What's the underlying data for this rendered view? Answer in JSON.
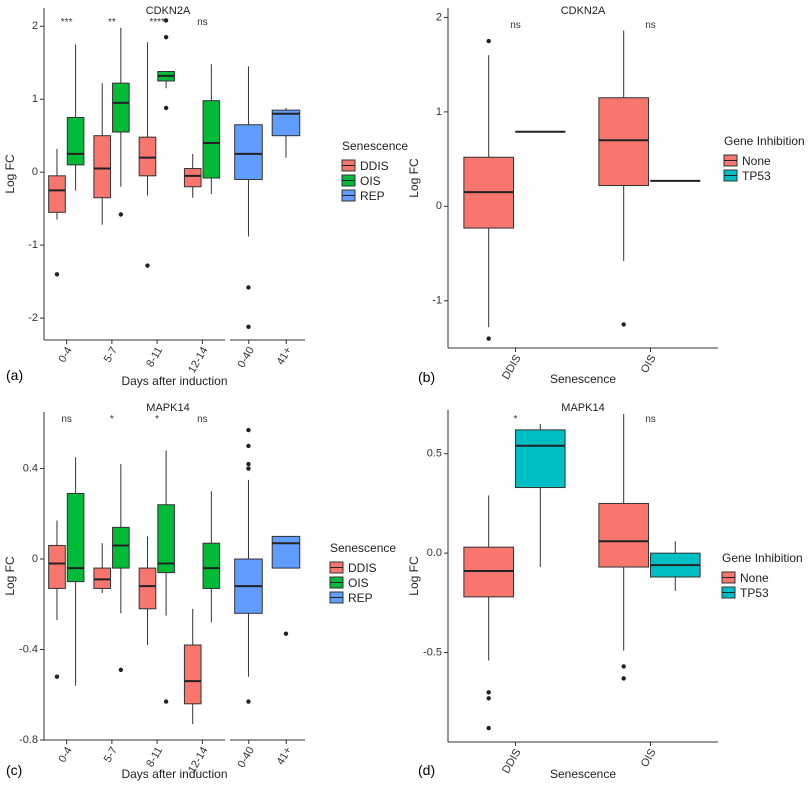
{
  "chart_data": [
    {
      "type": "boxplot",
      "panel_label": "(a)",
      "title": "CDKN2A",
      "xlabel": "Days after induction",
      "ylabel": "Log FC",
      "ylim": [
        -2.3,
        2.25
      ],
      "yticks": [
        -2,
        -1,
        0,
        1,
        2
      ],
      "facets": [
        {
          "categories": [
            "0-4",
            "5-7",
            "8-11",
            "12-14"
          ]
        },
        {
          "categories": [
            "0-40",
            "41+"
          ]
        }
      ],
      "legend": {
        "title": "Senescence",
        "entries": [
          "DDIS",
          "OIS",
          "REP"
        ],
        "colors": [
          "#F8766D",
          "#00BA38",
          "#619CFF"
        ]
      },
      "significance": [
        "***",
        "**",
        "****",
        "ns"
      ],
      "boxes": [
        {
          "facet": 0,
          "category": "0-4",
          "group": "DDIS",
          "min": -0.65,
          "q1": -0.55,
          "median": -0.25,
          "q3": -0.05,
          "max": 0.32,
          "outliers": [
            -1.4
          ]
        },
        {
          "facet": 0,
          "category": "0-4",
          "group": "OIS",
          "min": -0.25,
          "q1": 0.1,
          "median": 0.25,
          "q3": 0.75,
          "max": 1.75,
          "outliers": []
        },
        {
          "facet": 0,
          "category": "5-7",
          "group": "DDIS",
          "min": -0.72,
          "q1": -0.35,
          "median": 0.05,
          "q3": 0.5,
          "max": 1.22,
          "outliers": []
        },
        {
          "facet": 0,
          "category": "5-7",
          "group": "OIS",
          "min": -0.2,
          "q1": 0.55,
          "median": 0.95,
          "q3": 1.22,
          "max": 1.98,
          "outliers": [
            -0.58
          ]
        },
        {
          "facet": 0,
          "category": "8-11",
          "group": "DDIS",
          "min": -0.32,
          "q1": -0.05,
          "median": 0.2,
          "q3": 0.48,
          "max": 1.78,
          "outliers": [
            -1.28
          ]
        },
        {
          "facet": 0,
          "category": "8-11",
          "group": "OIS",
          "min": 1.15,
          "q1": 1.25,
          "median": 1.32,
          "q3": 1.38,
          "max": 1.38,
          "outliers": [
            0.88,
            1.85,
            2.08
          ]
        },
        {
          "facet": 0,
          "category": "12-14",
          "group": "DDIS",
          "min": -0.35,
          "q1": -0.2,
          "median": -0.05,
          "q3": 0.05,
          "max": 0.25,
          "outliers": []
        },
        {
          "facet": 0,
          "category": "12-14",
          "group": "OIS",
          "min": -0.3,
          "q1": -0.08,
          "median": 0.4,
          "q3": 0.98,
          "max": 1.48,
          "outliers": []
        },
        {
          "facet": 1,
          "category": "0-40",
          "group": "REP",
          "min": -0.88,
          "q1": -0.1,
          "median": 0.25,
          "q3": 0.65,
          "max": 1.45,
          "outliers": [
            -1.58,
            -2.12
          ]
        },
        {
          "facet": 1,
          "category": "41+",
          "group": "REP",
          "min": 0.2,
          "q1": 0.5,
          "median": 0.8,
          "q3": 0.85,
          "max": 0.88,
          "outliers": []
        }
      ]
    },
    {
      "type": "boxplot",
      "panel_label": "(b)",
      "title": "CDKN2A",
      "xlabel": "Senescence",
      "ylabel": "Log FC",
      "ylim": [
        -1.5,
        2.1
      ],
      "yticks": [
        -1,
        0,
        1,
        2
      ],
      "categories": [
        "DDIS",
        "OIS"
      ],
      "legend": {
        "title": "Gene Inhibition",
        "entries": [
          "None",
          "TP53"
        ],
        "colors": [
          "#F8766D",
          "#00BFC4"
        ]
      },
      "significance": [
        "ns",
        "ns"
      ],
      "boxes": [
        {
          "category": "DDIS",
          "group": "None",
          "min": -1.28,
          "q1": -0.23,
          "median": 0.15,
          "q3": 0.52,
          "max": 1.6,
          "outliers": [
            1.75,
            -1.4
          ]
        },
        {
          "category": "DDIS",
          "group": "TP53",
          "min": 0.79,
          "q1": 0.79,
          "median": 0.79,
          "q3": 0.79,
          "max": 0.79,
          "outliers": []
        },
        {
          "category": "OIS",
          "group": "None",
          "min": -0.58,
          "q1": 0.22,
          "median": 0.7,
          "q3": 1.15,
          "max": 1.86,
          "outliers": [
            -1.25
          ]
        },
        {
          "category": "OIS",
          "group": "TP53",
          "min": 0.27,
          "q1": 0.27,
          "median": 0.27,
          "q3": 0.27,
          "max": 0.27,
          "outliers": []
        }
      ]
    },
    {
      "type": "boxplot",
      "panel_label": "(c)",
      "title": "MAPK14",
      "xlabel": "Days after induction",
      "ylabel": "Log FC",
      "ylim": [
        -0.8,
        0.65
      ],
      "yticks": [
        -0.8,
        -0.4,
        0,
        0.4
      ],
      "yticklabels": [
        "-0.8",
        "-0.4",
        "0",
        "0.4"
      ],
      "facets": [
        {
          "categories": [
            "0-4",
            "5-7",
            "8-11",
            "12-14"
          ]
        },
        {
          "categories": [
            "0-40",
            "41+"
          ]
        }
      ],
      "legend": {
        "title": "Senescence",
        "entries": [
          "DDIS",
          "OIS",
          "REP"
        ],
        "colors": [
          "#F8766D",
          "#00BA38",
          "#619CFF"
        ]
      },
      "significance": [
        "ns",
        "*",
        "*",
        "ns"
      ],
      "boxes": [
        {
          "facet": 0,
          "category": "0-4",
          "group": "DDIS",
          "min": -0.27,
          "q1": -0.13,
          "median": -0.02,
          "q3": 0.06,
          "max": 0.17,
          "outliers": [
            -0.52
          ]
        },
        {
          "facet": 0,
          "category": "0-4",
          "group": "OIS",
          "min": -0.56,
          "q1": -0.1,
          "median": -0.04,
          "q3": 0.29,
          "max": 0.45,
          "outliers": []
        },
        {
          "facet": 0,
          "category": "5-7",
          "group": "DDIS",
          "min": -0.15,
          "q1": -0.13,
          "median": -0.09,
          "q3": -0.04,
          "max": 0.07,
          "outliers": []
        },
        {
          "facet": 0,
          "category": "5-7",
          "group": "OIS",
          "min": -0.24,
          "q1": -0.04,
          "median": 0.06,
          "q3": 0.14,
          "max": 0.42,
          "outliers": [
            -0.49
          ]
        },
        {
          "facet": 0,
          "category": "8-11",
          "group": "DDIS",
          "min": -0.38,
          "q1": -0.22,
          "median": -0.12,
          "q3": -0.04,
          "max": 0.1,
          "outliers": []
        },
        {
          "facet": 0,
          "category": "8-11",
          "group": "OIS",
          "min": -0.25,
          "q1": -0.06,
          "median": -0.02,
          "q3": 0.24,
          "max": 0.48,
          "outliers": [
            -0.63
          ]
        },
        {
          "facet": 0,
          "category": "12-14",
          "group": "DDIS",
          "min": -0.73,
          "q1": -0.64,
          "median": -0.54,
          "q3": -0.38,
          "max": -0.22,
          "outliers": []
        },
        {
          "facet": 0,
          "category": "12-14",
          "group": "OIS",
          "min": -0.28,
          "q1": -0.13,
          "median": -0.04,
          "q3": 0.07,
          "max": 0.3,
          "outliers": []
        },
        {
          "facet": 1,
          "category": "0-40",
          "group": "REP",
          "min": -0.52,
          "q1": -0.24,
          "median": -0.12,
          "q3": 0.0,
          "max": 0.35,
          "outliers": [
            0.4,
            0.42,
            0.5,
            0.57,
            -0.63
          ]
        },
        {
          "facet": 1,
          "category": "41+",
          "group": "REP",
          "min": -0.04,
          "q1": -0.04,
          "median": 0.07,
          "q3": 0.1,
          "max": 0.1,
          "outliers": [
            -0.33
          ]
        }
      ]
    },
    {
      "type": "boxplot",
      "panel_label": "(d)",
      "title": "MAPK14",
      "xlabel": "Senescence",
      "ylabel": "Log FC",
      "ylim": [
        -0.95,
        0.72
      ],
      "yticks": [
        -0.5,
        0.0,
        0.5
      ],
      "yticklabels": [
        "-0.5",
        "0.0",
        "0.5"
      ],
      "categories": [
        "DDIS",
        "OIS"
      ],
      "legend": {
        "title": "Gene Inhibition",
        "entries": [
          "None",
          "TP53"
        ],
        "colors": [
          "#F8766D",
          "#00BFC4"
        ]
      },
      "significance": [
        "*",
        "ns"
      ],
      "boxes": [
        {
          "category": "DDIS",
          "group": "None",
          "min": -0.54,
          "q1": -0.22,
          "median": -0.09,
          "q3": 0.03,
          "max": 0.29,
          "outliers": [
            -0.7,
            -0.73,
            -0.88
          ]
        },
        {
          "category": "DDIS",
          "group": "TP53",
          "min": -0.07,
          "q1": 0.33,
          "median": 0.54,
          "q3": 0.62,
          "max": 0.65,
          "outliers": []
        },
        {
          "category": "OIS",
          "group": "None",
          "min": -0.49,
          "q1": -0.07,
          "median": 0.06,
          "q3": 0.25,
          "max": 0.7,
          "outliers": [
            -0.57,
            -0.63
          ]
        },
        {
          "category": "OIS",
          "group": "TP53",
          "min": -0.19,
          "q1": -0.12,
          "median": -0.06,
          "q3": 0.0,
          "max": 0.06,
          "outliers": []
        }
      ]
    }
  ]
}
